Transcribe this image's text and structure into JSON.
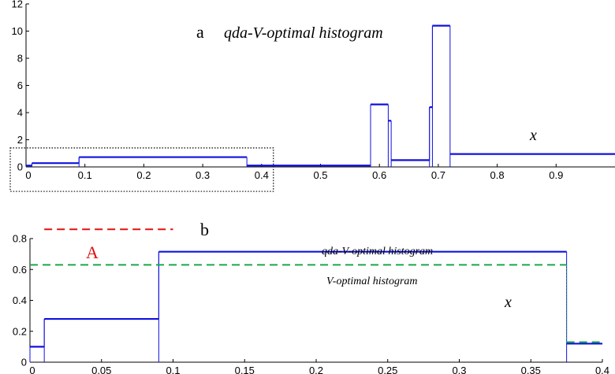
{
  "colors": {
    "qda_line": "#1010e0",
    "v_optimal_line": "#1aa64a",
    "a_line": "#e01010",
    "axis": "#000000",
    "selection_box": "#000000"
  },
  "panels": [
    {
      "letter": "a",
      "title": "qda-V-optimal histogram",
      "x_annotation": "x"
    },
    {
      "letter": "b",
      "label_qda": "qda-V-optimal histogram",
      "label_v_optimal": "V-optimal histogram",
      "x_annotation": "x",
      "marker_label": "A"
    }
  ],
  "chart_data": [
    {
      "type": "line",
      "panel": "a",
      "xlim": [
        0,
        1
      ],
      "ylim": [
        0,
        12
      ],
      "x_ticks": [
        0,
        0.1,
        0.2,
        0.3,
        0.4,
        0.5,
        0.6,
        0.7,
        0.8,
        0.9
      ],
      "x_tick_labels": [
        "0",
        "0.1",
        "0.2",
        "0.3",
        "0.4",
        "0.5",
        "0.6",
        "0.7",
        "0.8",
        "0.9"
      ],
      "y_ticks": [
        0,
        2,
        4,
        6,
        8,
        10,
        12
      ],
      "y_tick_labels": [
        "0",
        "2",
        "4",
        "6",
        "8",
        "10",
        "12"
      ],
      "highlight_region": {
        "x": [
          0,
          0.42
        ],
        "y": [
          -1.8,
          1.4
        ]
      },
      "series": [
        {
          "style": "step-solid",
          "bins": [
            [
              0,
              0.01,
              0.1
            ],
            [
              0.01,
              0.09,
              0.28
            ],
            [
              0.09,
              0.375,
              0.72
            ],
            [
              0.375,
              0.585,
              0.1
            ],
            [
              0.585,
              0.615,
              4.6
            ],
            [
              0.615,
              0.62,
              3.4
            ],
            [
              0.62,
              0.685,
              0.5
            ],
            [
              0.685,
              0.69,
              4.4
            ],
            [
              0.69,
              0.72,
              10.4
            ],
            [
              0.72,
              1.0,
              0.95
            ]
          ]
        }
      ]
    },
    {
      "type": "line",
      "panel": "b",
      "xlim": [
        0,
        0.4
      ],
      "ylim": [
        0,
        0.8
      ],
      "x_ticks": [
        0,
        0.05,
        0.1,
        0.15,
        0.2,
        0.25,
        0.3,
        0.35,
        0.4
      ],
      "x_tick_labels": [
        "0",
        "0.05",
        "0.1",
        "0.15",
        "0.2",
        "0.25",
        "0.3",
        "0.35",
        "0.4"
      ],
      "y_ticks": [
        0,
        0.2,
        0.4,
        0.6,
        0.8
      ],
      "y_tick_labels": [
        "0",
        "0.2",
        "0.4",
        "0.6",
        "0.8"
      ],
      "series": [
        {
          "name": "qda-V-optimal histogram",
          "style": "step-solid",
          "bins": [
            [
              0,
              0.01,
              0.1
            ],
            [
              0.01,
              0.09,
              0.28
            ],
            [
              0.09,
              0.375,
              0.715
            ],
            [
              0.375,
              0.4,
              0.12
            ]
          ]
        },
        {
          "name": "V-optimal histogram",
          "style": "dashed",
          "segments": [
            [
              0,
              0.375,
              0.63
            ],
            [
              0.375,
              0.4,
              0.13
            ]
          ]
        },
        {
          "name": "A",
          "style": "dashed",
          "segments": [
            [
              0.01,
              0.1,
              0.86
            ]
          ]
        }
      ]
    }
  ]
}
